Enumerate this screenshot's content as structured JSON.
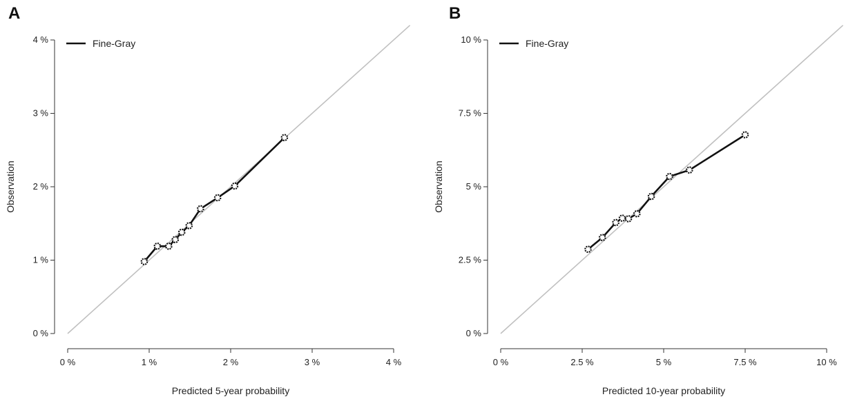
{
  "chart_data": [
    {
      "panel": "A",
      "type": "line",
      "xlabel": "Predicted 5-year probability",
      "ylabel": "Observation",
      "xlim": [
        0,
        4
      ],
      "ylim": [
        0,
        4
      ],
      "x_ticks": [
        "0 %",
        "1 %",
        "2 %",
        "3 %",
        "4 %"
      ],
      "y_ticks": [
        "0 %",
        "1 %",
        "2 %",
        "3 %",
        "4 %"
      ],
      "tick_values": [
        0,
        1,
        2,
        3,
        4
      ],
      "reference_line": {
        "from": [
          0,
          0
        ],
        "to": [
          4,
          4
        ],
        "color": "#c0c0c0"
      },
      "legend_position": "top-left",
      "series": [
        {
          "name": "Fine-Gray",
          "color": "#111111",
          "x": [
            0.94,
            1.1,
            1.24,
            1.32,
            1.4,
            1.49,
            1.63,
            1.84,
            2.05,
            2.66
          ],
          "y": [
            0.98,
            1.19,
            1.19,
            1.28,
            1.38,
            1.47,
            1.7,
            1.85,
            2.01,
            2.67
          ]
        }
      ]
    },
    {
      "panel": "B",
      "type": "line",
      "xlabel": "Predicted 10-year probability",
      "ylabel": "Observation",
      "xlim": [
        0,
        10
      ],
      "ylim": [
        0,
        10
      ],
      "x_ticks": [
        "0 %",
        "2.5 %",
        "5 %",
        "7.5 %",
        "10 %"
      ],
      "y_ticks": [
        "0 %",
        "2.5 %",
        "5 %",
        "7.5 %",
        "10 %"
      ],
      "tick_values": [
        0,
        2.5,
        5,
        7.5,
        10
      ],
      "reference_line": {
        "from": [
          0,
          0
        ],
        "to": [
          10,
          10
        ],
        "color": "#c0c0c0"
      },
      "legend_position": "top-left",
      "series": [
        {
          "name": "Fine-Gray",
          "color": "#111111",
          "x": [
            2.68,
            3.12,
            3.53,
            3.73,
            3.92,
            4.18,
            4.62,
            5.18,
            5.79,
            7.5
          ],
          "y": [
            2.87,
            3.27,
            3.78,
            3.93,
            3.91,
            4.08,
            4.67,
            5.35,
            5.57,
            6.77
          ]
        }
      ]
    }
  ]
}
